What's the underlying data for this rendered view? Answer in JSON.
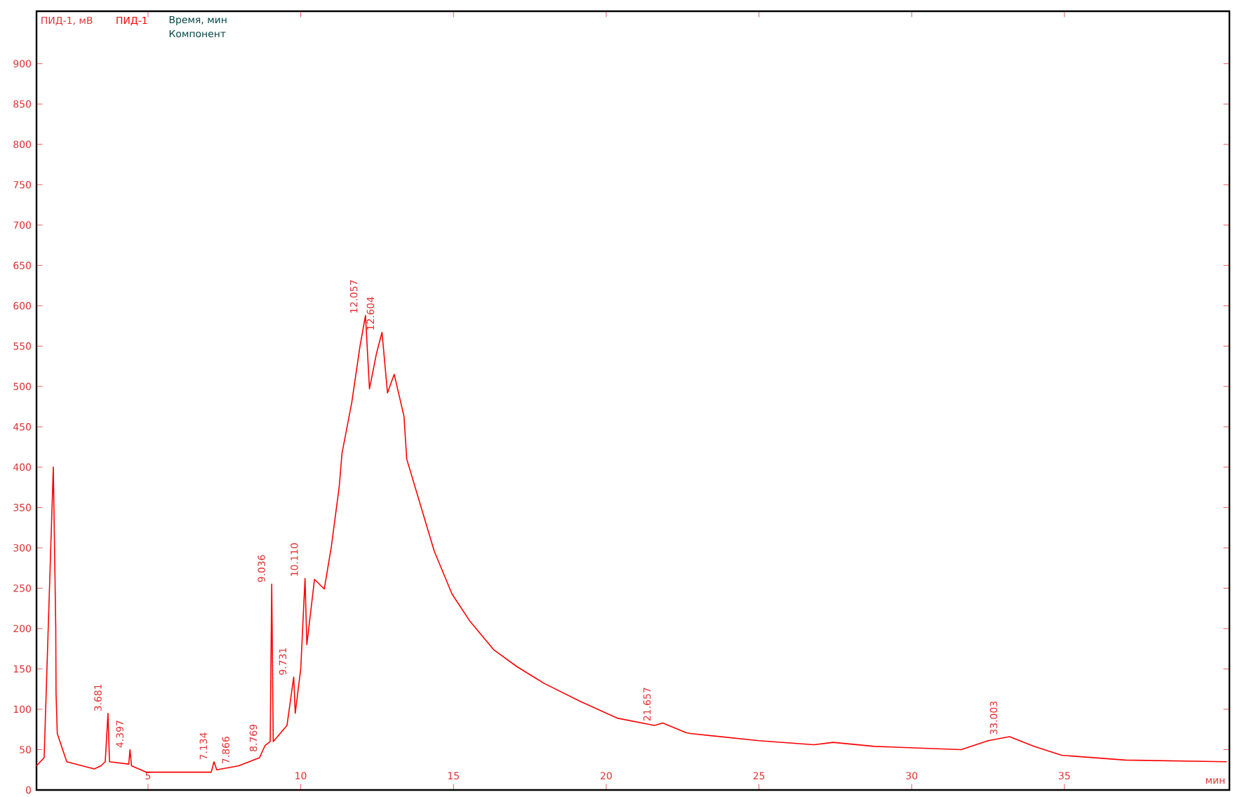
{
  "chart_data": {
    "type": "line",
    "ylabel": "ПИД-1, мВ",
    "xlabel": "мин",
    "xlim": [
      1.35,
      40.4
    ],
    "ylim": [
      0,
      965
    ],
    "xticks": [
      5,
      10,
      15,
      20,
      25,
      30,
      35
    ],
    "yticks": [
      0,
      50,
      100,
      150,
      200,
      250,
      300,
      350,
      400,
      450,
      500,
      550,
      600,
      650,
      700,
      750,
      800,
      850,
      900
    ],
    "grid": false,
    "marker": "none",
    "line_style": "solid",
    "series": [
      {
        "name": "ПИД-1",
        "color": "#ff0000",
        "x": [
          1.35,
          1.6,
          1.7,
          1.8,
          1.9,
          1.98,
          1.99,
          2.03,
          2.34,
          3.24,
          3.46,
          3.6,
          3.69,
          3.74,
          4.37,
          4.41,
          4.46,
          4.95,
          7.07,
          7.16,
          7.25,
          7.97,
          8.65,
          8.83,
          9.0,
          9.05,
          9.1,
          9.55,
          9.77,
          9.82,
          10.0,
          10.14,
          10.2,
          10.45,
          10.77,
          11.0,
          11.26,
          11.35,
          11.67,
          11.94,
          12.12,
          12.25,
          12.48,
          12.66,
          12.84,
          13.06,
          13.38,
          13.47,
          13.92,
          14.37,
          14.95,
          15.54,
          16.31,
          17.07,
          17.97,
          19.14,
          20.36,
          21.58,
          21.85,
          22.61,
          22.75,
          25.0,
          26.8,
          27.43,
          28.78,
          31.62,
          32.5,
          33.2,
          34.0,
          34.91,
          37.0,
          40.3
        ],
        "values": [
          30,
          40,
          null,
          null,
          400,
          202,
          120,
          70,
          35,
          26,
          30,
          35,
          95,
          35,
          32,
          50,
          30,
          22,
          22,
          35,
          25,
          30,
          40,
          55,
          60,
          255,
          60,
          80,
          140,
          95,
          150,
          262,
          180,
          261,
          249,
          301,
          376,
          417,
          480,
          550,
          588,
          497,
          541,
          567,
          492,
          515,
          463,
          410,
          353,
          296,
          243,
          209,
          174,
          153,
          132,
          110,
          89,
          80,
          83,
          71,
          70,
          61,
          56,
          59,
          54,
          50,
          61,
          66,
          54,
          43,
          37,
          35
        ]
      }
    ],
    "annotations": [
      "Время, мин",
      "Компонент",
      {
        "text": "3.681",
        "x": 3.681,
        "y": 95
      },
      {
        "text": "4.397",
        "x": 4.397,
        "y": 50
      },
      {
        "text": "7.134",
        "x": 7.134,
        "y": 35
      },
      {
        "text": "7.866",
        "x": 7.866,
        "y": 30
      },
      {
        "text": "8.769",
        "x": 8.769,
        "y": 45
      },
      {
        "text": "9.036",
        "x": 9.036,
        "y": 255
      },
      {
        "text": "9.731",
        "x": 9.731,
        "y": 140
      },
      {
        "text": "10.110",
        "x": 10.11,
        "y": 262
      },
      {
        "text": "12.057",
        "x": 12.057,
        "y": 588
      },
      {
        "text": "12.604",
        "x": 12.604,
        "y": 567
      },
      {
        "text": "21.657",
        "x": 21.657,
        "y": 83
      },
      {
        "text": "33.003",
        "x": 33.003,
        "y": 66
      }
    ]
  }
}
